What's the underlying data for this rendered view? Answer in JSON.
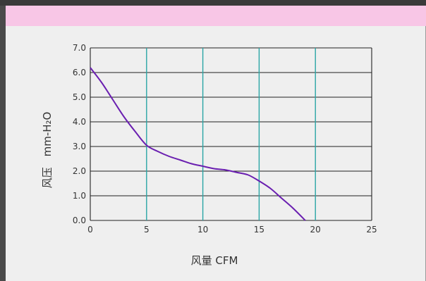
{
  "chart_data": {
    "type": "line",
    "title": "",
    "xlabel": "风量 CFM",
    "ylabel": "风压　mm-H₂O",
    "xlim": [
      0,
      25
    ],
    "ylim": [
      0,
      7
    ],
    "xticks": [
      "0",
      "5",
      "10",
      "15",
      "20",
      "25"
    ],
    "yticks": [
      "0.0",
      "1.0",
      "2.0",
      "3.0",
      "4.0",
      "5.0",
      "6.0",
      "7.0"
    ],
    "grid": true,
    "legend": "none",
    "series": [
      {
        "color": "#6a1fb0",
        "x": [
          0,
          1,
          2,
          3,
          4,
          5,
          6,
          7,
          8,
          9,
          10,
          11,
          12,
          13,
          14,
          15,
          16,
          17,
          18,
          19.1
        ],
        "y": [
          6.2,
          5.6,
          4.9,
          4.2,
          3.6,
          3.05,
          2.8,
          2.6,
          2.45,
          2.3,
          2.2,
          2.1,
          2.05,
          1.95,
          1.85,
          1.6,
          1.3,
          0.9,
          0.5,
          0.0
        ]
      }
    ]
  },
  "colors": {
    "top_band": "#f8c6e6",
    "panel": "#efefef",
    "grid_vertical": "#2aa5a5",
    "grid_horizontal": "#222222",
    "curve": "#6a1fb0"
  }
}
